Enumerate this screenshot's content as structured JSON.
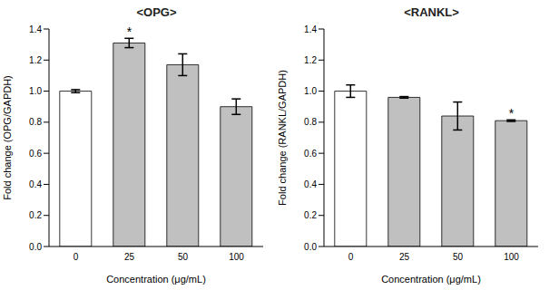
{
  "chart_data": [
    {
      "type": "bar",
      "title": "<OPG>",
      "x_label": "Concentration (μg/mL)",
      "y_label": "Fold change (OPG/GAPDH)",
      "categories": [
        "0",
        "25",
        "50",
        "100"
      ],
      "values": [
        1.0,
        1.31,
        1.17,
        0.9
      ],
      "errors": [
        0.01,
        0.03,
        0.07,
        0.05
      ],
      "colors": [
        "#ffffff",
        "#c0c0c0",
        "#c0c0c0",
        "#c0c0c0"
      ],
      "ylim": [
        0,
        1.4
      ],
      "yticks": [
        {
          "value": 0,
          "label": "0.0"
        },
        {
          "value": 0.2,
          "label": "0.2"
        },
        {
          "value": 0.4,
          "label": "0.4"
        },
        {
          "value": 0.6,
          "label": "0.6"
        },
        {
          "value": 0.8,
          "label": "0.8"
        },
        {
          "value": 1.0,
          "label": "1.0"
        },
        {
          "value": 1.2,
          "label": "1.2"
        },
        {
          "value": 1.4,
          "label": "1.4"
        }
      ],
      "annotations": [
        {
          "text": "*",
          "x": "25"
        }
      ]
    },
    {
      "type": "bar",
      "title": "<RANKL>",
      "x_label": "Concentration (μg/mL)",
      "y_label": "Fold change (RANKL/GAPDH)",
      "categories": [
        "0",
        "25",
        "50",
        "100"
      ],
      "values": [
        1.0,
        0.96,
        0.84,
        0.81
      ],
      "errors": [
        0.04,
        0.005,
        0.09,
        0.005
      ],
      "colors": [
        "#ffffff",
        "#c0c0c0",
        "#c0c0c0",
        "#c0c0c0"
      ],
      "ylim": [
        0,
        1.4
      ],
      "yticks": [
        {
          "value": 0,
          "label": "0.0"
        },
        {
          "value": 0.2,
          "label": "0.2"
        },
        {
          "value": 0.4,
          "label": "0.4"
        },
        {
          "value": 0.6,
          "label": "0.6"
        },
        {
          "value": 0.8,
          "label": "0.8"
        },
        {
          "value": 1.0,
          "label": "1.0"
        },
        {
          "value": 1.2,
          "label": "1.2"
        },
        {
          "value": 1.4,
          "label": "1.4"
        }
      ],
      "annotations": [
        {
          "text": "*",
          "x": "100"
        }
      ]
    }
  ]
}
